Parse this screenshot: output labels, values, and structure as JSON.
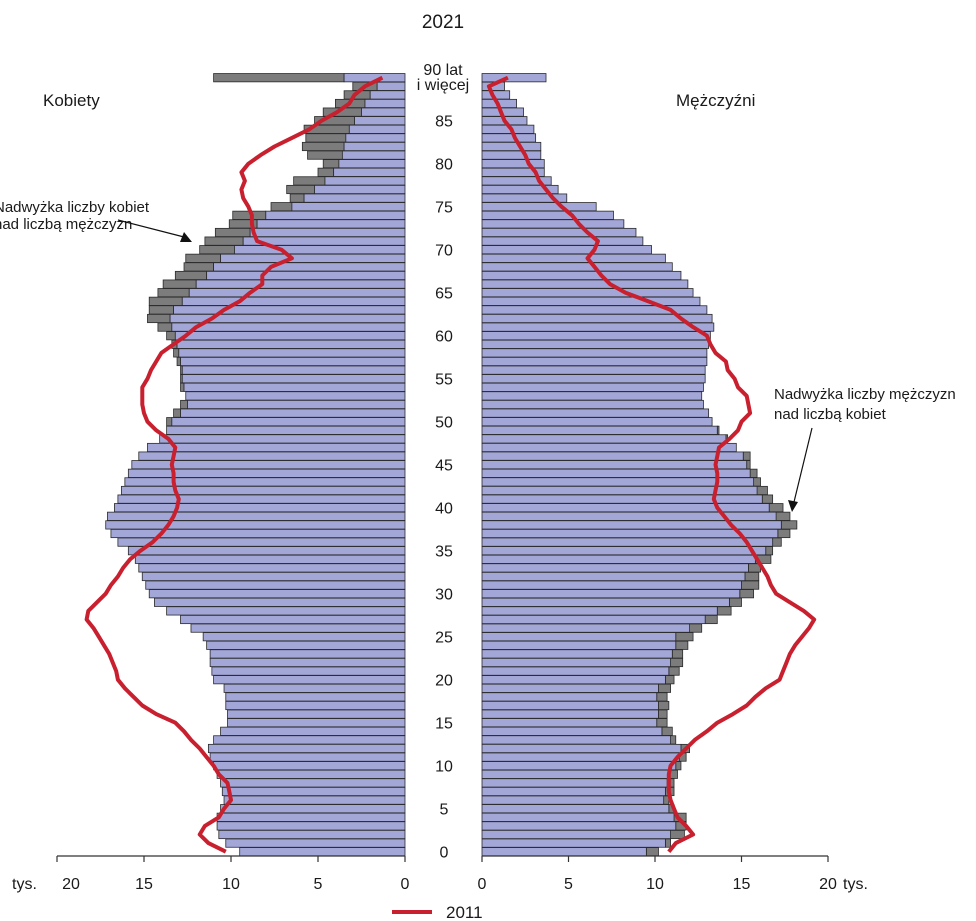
{
  "chart_data": {
    "type": "bar",
    "title": "2021",
    "left_label": "Kobiety",
    "right_label": "Mężczyźni",
    "unit_left": "tys.",
    "unit_right": "tys.",
    "x_ticks_left": [
      "20",
      "15",
      "10",
      "5",
      "0"
    ],
    "x_ticks_right": [
      "0",
      "5",
      "10",
      "15",
      "20"
    ],
    "xlim": [
      0,
      20
    ],
    "age_ticks": [
      "0",
      "5",
      "10",
      "15",
      "20",
      "25",
      "30",
      "35",
      "40",
      "45",
      "50",
      "55",
      "60",
      "65",
      "70",
      "75",
      "80",
      "85"
    ],
    "age_top_label": [
      "90 lat",
      "i więcej"
    ],
    "annotation_women": [
      "Nadwyżka liczby kobiet",
      "nad liczbą mężczyzn"
    ],
    "annotation_men": [
      "Nadwyżka liczby mężczyzn",
      "nad liczbą kobiet"
    ],
    "legend": [
      {
        "label": "2011",
        "color": "#c8202e"
      }
    ],
    "colors": {
      "bar": "#a3a7d8",
      "surplus": "#7c7c7c",
      "line": "#c8202e",
      "axis": "#333333"
    },
    "ages": [
      0,
      1,
      2,
      3,
      4,
      5,
      6,
      7,
      8,
      9,
      10,
      11,
      12,
      13,
      14,
      15,
      16,
      17,
      18,
      19,
      20,
      21,
      22,
      23,
      24,
      25,
      26,
      27,
      28,
      29,
      30,
      31,
      32,
      33,
      34,
      35,
      36,
      37,
      38,
      39,
      40,
      41,
      42,
      43,
      44,
      45,
      46,
      47,
      48,
      49,
      50,
      51,
      52,
      53,
      54,
      55,
      56,
      57,
      58,
      59,
      60,
      61,
      62,
      63,
      64,
      65,
      66,
      67,
      68,
      69,
      70,
      71,
      72,
      73,
      74,
      75,
      76,
      77,
      78,
      79,
      80,
      81,
      82,
      83,
      84,
      85,
      86,
      87,
      88,
      89,
      90
    ],
    "women_2021": [
      9.5,
      10.3,
      10.7,
      10.8,
      10.8,
      10.6,
      10.4,
      10.5,
      10.6,
      10.8,
      11.0,
      11.2,
      11.3,
      11.0,
      10.6,
      10.2,
      10.2,
      10.3,
      10.3,
      10.4,
      11.0,
      11.1,
      11.2,
      11.2,
      11.4,
      11.6,
      12.3,
      12.9,
      13.7,
      14.4,
      14.7,
      14.9,
      15.1,
      15.3,
      15.5,
      15.9,
      16.5,
      16.9,
      17.2,
      17.1,
      16.7,
      16.5,
      16.3,
      16.1,
      15.9,
      15.7,
      15.3,
      14.8,
      14.1,
      13.7,
      13.4,
      12.9,
      12.5,
      12.6,
      12.7,
      12.8,
      12.8,
      12.9,
      13.0,
      13.1,
      13.2,
      13.4,
      13.5,
      13.3,
      12.8,
      12.4,
      12.0,
      11.4,
      11.0,
      10.6,
      9.8,
      9.3,
      8.9,
      8.5,
      8.0,
      6.5,
      5.8,
      5.2,
      4.6,
      4.1,
      3.8,
      3.6,
      3.5,
      3.4,
      3.2,
      2.9,
      2.5,
      2.3,
      2.0,
      1.6,
      3.5
    ],
    "women_surplus": [
      0,
      0,
      0,
      0,
      0,
      0,
      0,
      0,
      0,
      0,
      0,
      0,
      0,
      0,
      0,
      0,
      0,
      0,
      0,
      0,
      0,
      0,
      0,
      0,
      0,
      0,
      0,
      0,
      0,
      0,
      0,
      0,
      0,
      0,
      0,
      0,
      0,
      0,
      0,
      0,
      0,
      0,
      0,
      0,
      0,
      0,
      0,
      0,
      0,
      0,
      0.3,
      0.4,
      0.4,
      0,
      0.2,
      0.1,
      0.1,
      0.2,
      0.3,
      0.3,
      0.5,
      0.8,
      1.3,
      1.4,
      1.9,
      1.8,
      1.9,
      1.8,
      1.7,
      2.0,
      2.0,
      2.2,
      2.0,
      1.6,
      1.9,
      1.2,
      0.8,
      1.6,
      1.8,
      0.9,
      0.9,
      2.0,
      2.4,
      2.3,
      2.6,
      2.3,
      2.2,
      1.7,
      1.5,
      1.4,
      7.5
    ],
    "men_2021": [
      9.5,
      10.6,
      10.9,
      11.2,
      11.1,
      10.8,
      10.5,
      10.6,
      10.7,
      10.8,
      11.2,
      11.4,
      11.5,
      10.9,
      10.4,
      10.1,
      10.2,
      10.2,
      10.1,
      10.2,
      10.6,
      10.8,
      10.9,
      11.0,
      11.2,
      11.2,
      12.0,
      12.9,
      13.6,
      14.3,
      14.9,
      15.0,
      15.2,
      15.4,
      15.8,
      16.4,
      16.8,
      17.1,
      17.3,
      17.0,
      16.6,
      16.2,
      15.9,
      15.7,
      15.5,
      15.3,
      15.1,
      14.7,
      14.1,
      13.6,
      13.3,
      13.1,
      12.8,
      12.7,
      12.8,
      12.9,
      12.9,
      13.0,
      13.0,
      13.1,
      13.2,
      13.4,
      13.3,
      13.0,
      12.6,
      12.2,
      11.9,
      11.5,
      11.0,
      10.6,
      9.8,
      9.3,
      8.9,
      8.2,
      7.6,
      6.6,
      4.9,
      4.4,
      4.0,
      3.6,
      3.6,
      3.4,
      3.4,
      3.1,
      3.0,
      2.6,
      2.4,
      2.0,
      1.6,
      1.3,
      3.7
    ],
    "men_surplus": [
      0.7,
      0.3,
      0.8,
      0.6,
      0.7,
      0.3,
      0.3,
      0.5,
      0.4,
      0.5,
      0.3,
      0.4,
      0.5,
      0.3,
      0.6,
      0.6,
      0.5,
      0.6,
      0.6,
      0.7,
      0.5,
      0.6,
      0.7,
      0.6,
      0.7,
      1.0,
      0.7,
      0.7,
      0.8,
      0.7,
      0.8,
      1.0,
      0.8,
      0.7,
      0.9,
      0.4,
      0.5,
      0.7,
      0.9,
      0.8,
      0.8,
      0.6,
      0.6,
      0.4,
      0.4,
      0.2,
      0.4,
      0.0,
      0.1,
      0.1,
      0,
      0,
      0,
      0,
      0,
      0,
      0,
      0,
      0,
      0,
      0,
      0,
      0,
      0,
      0,
      0,
      0,
      0,
      0,
      0,
      0,
      0,
      0,
      0,
      0,
      0,
      0,
      0,
      0,
      0,
      0,
      0,
      0,
      0,
      0,
      0,
      0,
      0,
      0,
      0,
      0
    ],
    "women_2011": [
      10.3,
      11.3,
      11.8,
      11.5,
      10.7,
      10.4,
      10.0,
      10.1,
      10.2,
      10.7,
      11.0,
      11.4,
      11.8,
      12.3,
      12.7,
      13.2,
      14.3,
      15.1,
      15.6,
      16.1,
      16.5,
      16.6,
      16.8,
      17.0,
      17.3,
      17.6,
      17.9,
      18.3,
      18.2,
      17.7,
      17.2,
      16.9,
      16.5,
      16.2,
      15.8,
      15.2,
      14.5,
      14.0,
      13.6,
      13.3,
      13.1,
      13.0,
      13.2,
      13.3,
      13.3,
      13.4,
      13.3,
      13.2,
      13.6,
      14.3,
      14.8,
      15.0,
      15.1,
      15.1,
      15.1,
      14.8,
      14.6,
      14.3,
      14.0,
      13.3,
      12.6,
      12.0,
      11.1,
      10.4,
      9.5,
      8.9,
      8.2,
      8.2,
      7.7,
      6.5,
      7.1,
      8.5,
      8.7,
      8.8,
      8.8,
      9.0,
      9.3,
      9.4,
      9.2,
      9.4,
      9.0,
      8.3,
      7.5,
      6.5,
      5.5,
      4.8,
      3.9,
      3.2,
      2.9,
      2.3,
      1.3
    ],
    "men_2011": [
      10.8,
      11.2,
      12.2,
      11.8,
      11.3,
      11.1,
      10.9,
      10.8,
      10.8,
      10.8,
      10.9,
      11.3,
      11.8,
      12.3,
      13.0,
      13.6,
      14.5,
      15.3,
      15.8,
      16.4,
      17.2,
      17.4,
      17.6,
      17.8,
      18.1,
      18.5,
      18.9,
      19.2,
      18.6,
      17.8,
      17.0,
      16.7,
      16.5,
      16.2,
      15.9,
      15.6,
      15.3,
      14.9,
      14.4,
      14.0,
      13.6,
      13.4,
      13.5,
      13.6,
      13.6,
      13.5,
      13.6,
      13.7,
      14.3,
      14.8,
      15.0,
      15.5,
      15.4,
      15.3,
      14.8,
      14.6,
      14.2,
      14.1,
      13.5,
      13.2,
      13.0,
      12.2,
      11.5,
      10.9,
      9.6,
      8.3,
      7.4,
      6.9,
      6.5,
      6.1,
      6.5,
      6.7,
      6.1,
      5.6,
      5.2,
      4.6,
      4.1,
      3.7,
      3.3,
      3.1,
      2.7,
      2.5,
      2.2,
      1.9,
      1.7,
      1.3,
      1.1,
      0.9,
      0.6,
      0.4,
      1.5
    ]
  }
}
